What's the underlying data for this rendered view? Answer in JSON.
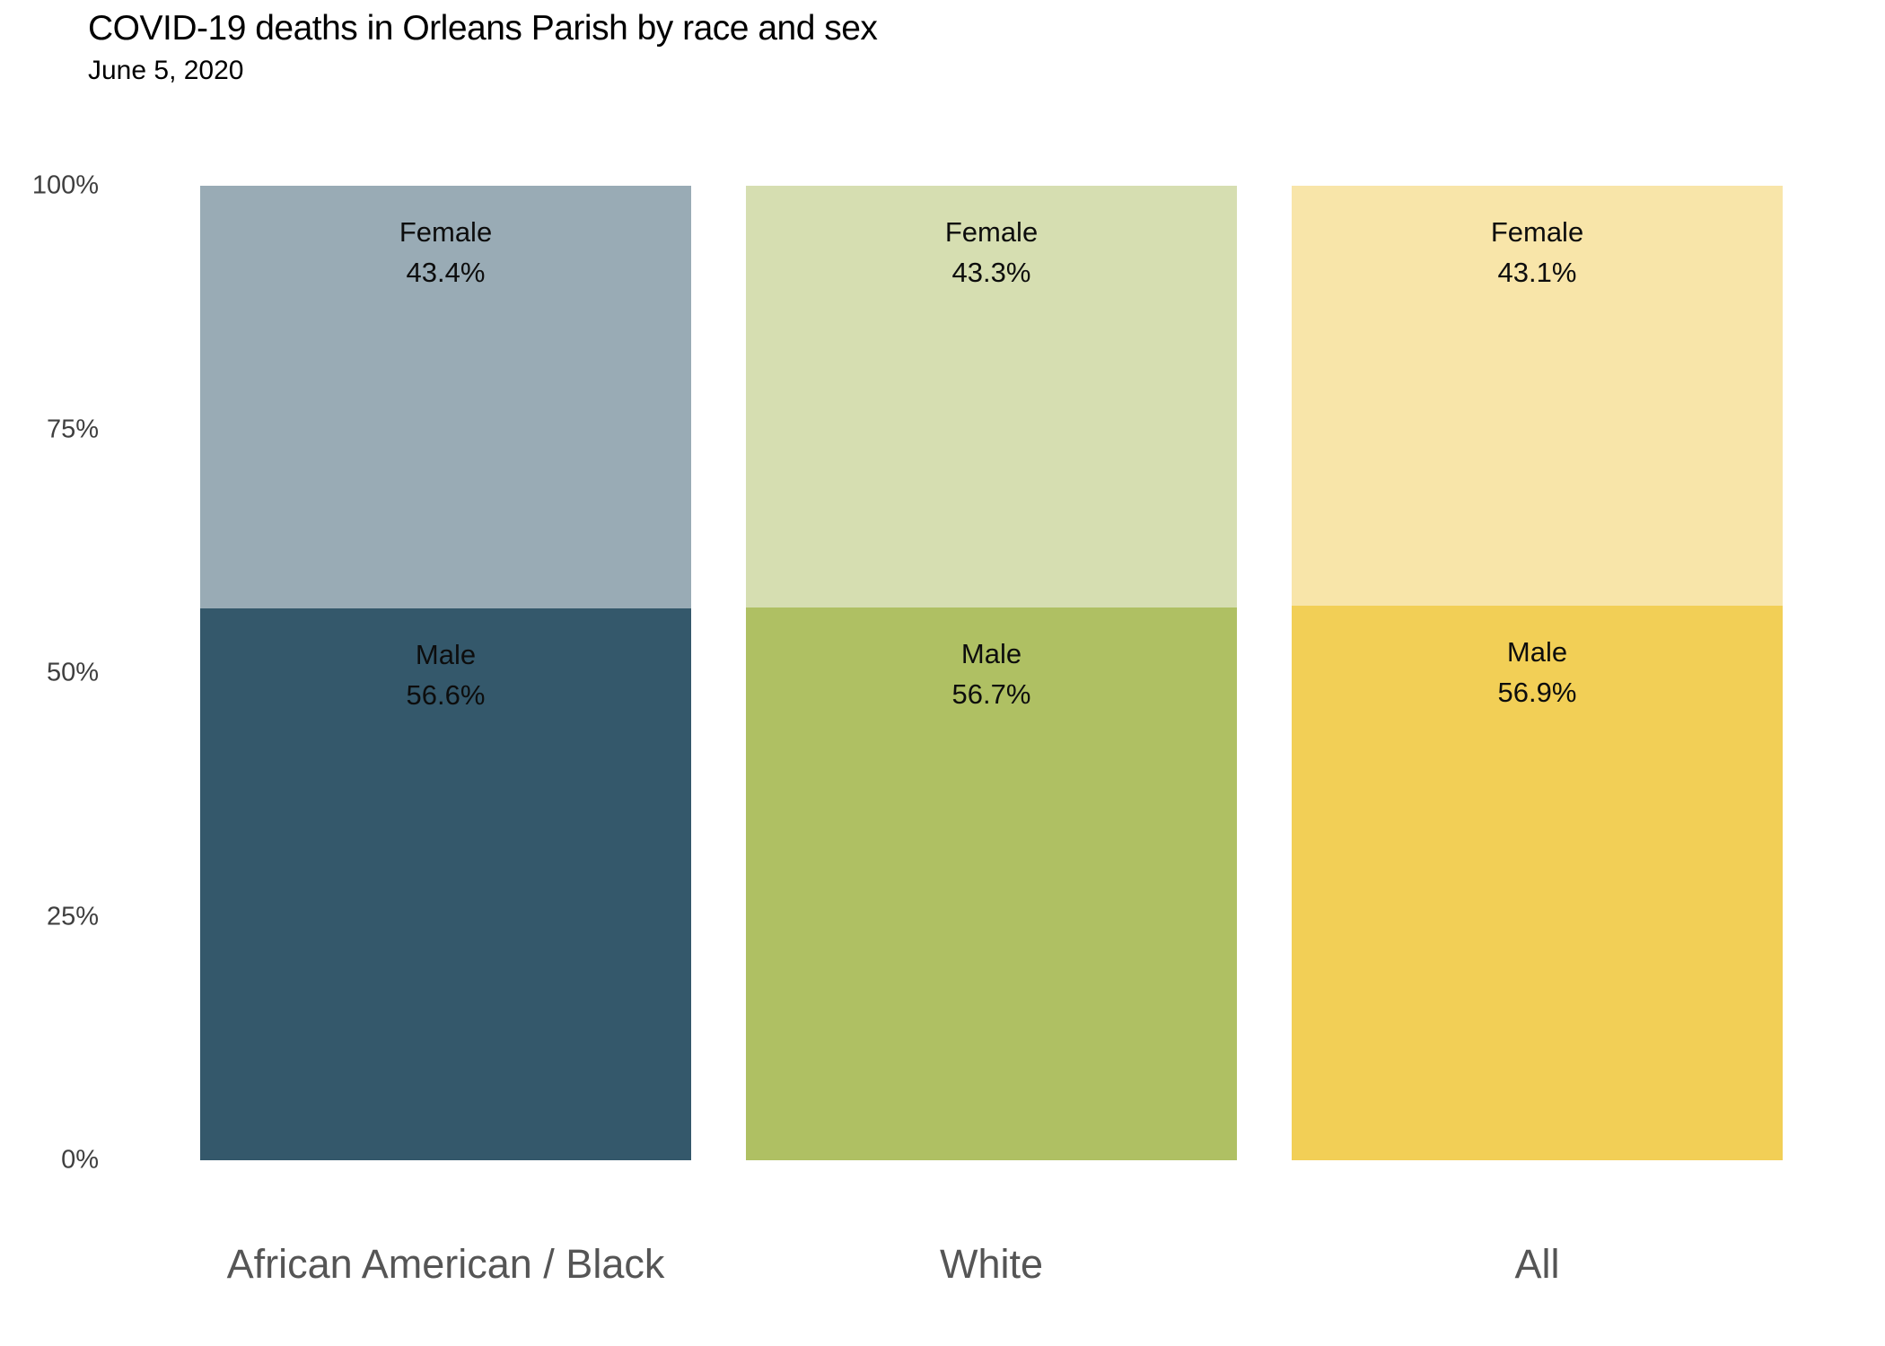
{
  "header": {
    "title": "COVID-19 deaths in Orleans Parish by race and sex",
    "subtitle": "June 5, 2020"
  },
  "y_axis": {
    "ticks": [
      {
        "label": "100%",
        "value": 100
      },
      {
        "label": "75%",
        "value": 75
      },
      {
        "label": "50%",
        "value": 50
      },
      {
        "label": "25%",
        "value": 25
      },
      {
        "label": "0%",
        "value": 0
      }
    ]
  },
  "chart_data": {
    "type": "bar",
    "stacked": true,
    "orientation": "vertical",
    "title": "COVID-19 deaths in Orleans Parish by race and sex",
    "subtitle": "June 5, 2020",
    "categories": [
      "African American / Black",
      "White",
      "All"
    ],
    "series": [
      {
        "name": "Female",
        "values": [
          43.4,
          43.3,
          43.1
        ],
        "colors": [
          "#99ABB5",
          "#D6DEB1",
          "#F8E5A9"
        ]
      },
      {
        "name": "Male",
        "values": [
          56.6,
          56.7,
          56.9
        ],
        "colors": [
          "#34586B",
          "#AFC063",
          "#F2CF56"
        ]
      }
    ],
    "segment_order_top_to_bottom": [
      "Female",
      "Male"
    ],
    "value_suffix": "%",
    "ylim": [
      0,
      100
    ],
    "grid": false,
    "legend_position": "labels-inside-segments",
    "colors": {
      "tick_label": "#3f3f3f",
      "category_label": "#555555",
      "segment_label": "#0d0d0d",
      "background": "#ffffff"
    }
  }
}
